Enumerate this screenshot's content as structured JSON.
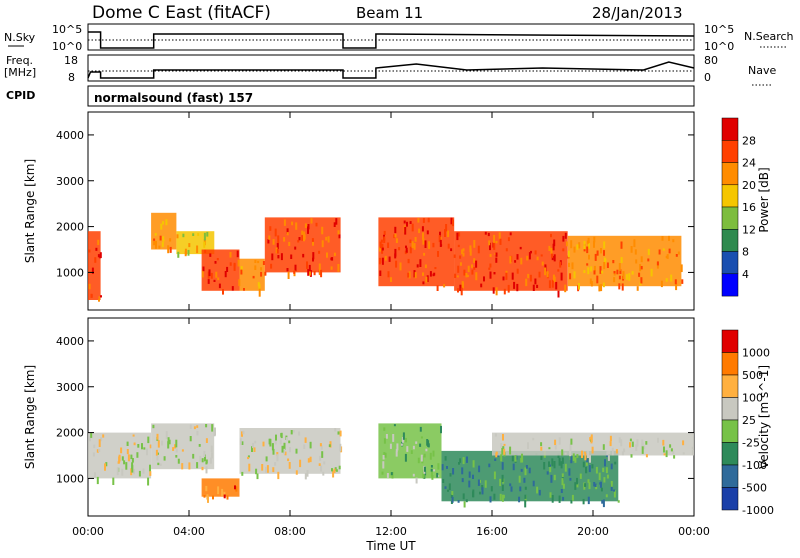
{
  "chart_data": {
    "type": "heatmap",
    "header": {
      "title": "Dome C East (fitACF)",
      "beam": "Beam 11",
      "date": "28/Jan/2013"
    },
    "panels": {
      "nsky": {
        "left_label": "N.Sky",
        "left_ticks": [
          "10^5",
          "10^0"
        ],
        "right_ticks": [
          "10^5",
          "10^0"
        ],
        "right_label": "N.Search"
      },
      "freq": {
        "left_label_1": "Freq.",
        "left_label_2": "[MHz]",
        "left_ticks": [
          "18",
          "8"
        ],
        "right_ticks": [
          "80",
          "0"
        ],
        "right_label": "Nave"
      },
      "cpid": {
        "label": "CPID",
        "text": "normalsound (fast) 157"
      }
    },
    "x_axis": {
      "label": "Time UT",
      "ticks": [
        "00:00",
        "04:00",
        "08:00",
        "12:00",
        "16:00",
        "20:00",
        "00:00"
      ],
      "range_hours": [
        0,
        24
      ]
    },
    "y_axis": {
      "label": "Slant Range [km]",
      "ticks": [
        1000,
        2000,
        3000,
        4000
      ],
      "range_km": [
        180,
        4500
      ]
    },
    "power_panel": {
      "colorbar_label": "Power [dB]",
      "colorbar_ticks": [
        "28",
        "24",
        "20",
        "16",
        "12",
        "8",
        "4"
      ],
      "colors": [
        "#0000ff",
        "#1a4fb0",
        "#2f8a4f",
        "#7dbd3e",
        "#f5c600",
        "#ff8c00",
        "#ff4000",
        "#e00000"
      ],
      "segments": [
        {
          "t0": 0.0,
          "t1": 0.5,
          "r0": 400,
          "r1": 1900,
          "level": 6
        },
        {
          "t0": 2.5,
          "t1": 3.5,
          "r0": 1500,
          "r1": 2300,
          "level": 5
        },
        {
          "t0": 3.5,
          "t1": 5.0,
          "r0": 1400,
          "r1": 1900,
          "level": 4
        },
        {
          "t0": 4.5,
          "t1": 6.0,
          "r0": 600,
          "r1": 1500,
          "level": 6
        },
        {
          "t0": 6.0,
          "t1": 7.0,
          "r0": 600,
          "r1": 1300,
          "level": 5
        },
        {
          "t0": 7.0,
          "t1": 10.0,
          "r0": 1000,
          "r1": 2200,
          "level": 6
        },
        {
          "t0": 11.5,
          "t1": 14.5,
          "r0": 700,
          "r1": 2200,
          "level": 6
        },
        {
          "t0": 14.5,
          "t1": 19.0,
          "r0": 600,
          "r1": 1900,
          "level": 6
        },
        {
          "t0": 19.0,
          "t1": 23.5,
          "r0": 700,
          "r1": 1800,
          "level": 5
        }
      ]
    },
    "velocity_panel": {
      "colorbar_label": "Velocity [m s^-1]",
      "colorbar_ticks": [
        "1000",
        "500",
        "100",
        "25",
        "-25",
        "-100",
        "-500",
        "-1000"
      ],
      "colors": [
        "#1a3fa8",
        "#2f6a9a",
        "#2e8a5a",
        "#77c248",
        "#c8c8c0",
        "#ffb040",
        "#ff7a00",
        "#e00000"
      ],
      "segments": [
        {
          "t0": 0.0,
          "t1": 2.5,
          "r0": 1000,
          "r1": 2000,
          "level": 4
        },
        {
          "t0": 2.5,
          "t1": 5.0,
          "r0": 1200,
          "r1": 2200,
          "level": 4
        },
        {
          "t0": 4.5,
          "t1": 6.0,
          "r0": 600,
          "r1": 1000,
          "level": 6
        },
        {
          "t0": 6.0,
          "t1": 10.0,
          "r0": 1100,
          "r1": 2100,
          "level": 4
        },
        {
          "t0": 11.5,
          "t1": 14.0,
          "r0": 1000,
          "r1": 2200,
          "level": 3
        },
        {
          "t0": 14.0,
          "t1": 21.0,
          "r0": 500,
          "r1": 1600,
          "level": 2
        },
        {
          "t0": 16.0,
          "t1": 24.0,
          "r0": 1500,
          "r1": 2000,
          "level": 4
        }
      ]
    }
  }
}
